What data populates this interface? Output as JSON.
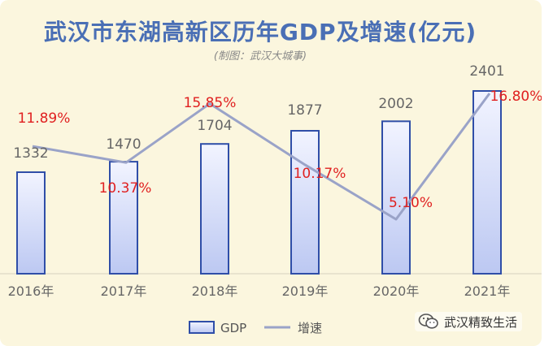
{
  "chart_data": {
    "type": "bar+line",
    "title": "武汉市东湖高新区历年GDP及增速(亿元)",
    "subtitle": "(制图：武汉大城事)",
    "categories": [
      "2016年",
      "2017年",
      "2018年",
      "2019年",
      "2020年",
      "2021年"
    ],
    "series": [
      {
        "name": "GDP",
        "type": "bar",
        "values": [
          1332,
          1470,
          1704,
          1877,
          2002,
          2401
        ],
        "labels": [
          "1332",
          "1470",
          "1704",
          "1877",
          "2002",
          "2401"
        ]
      },
      {
        "name": "增速",
        "type": "line",
        "values": [
          11.89,
          10.37,
          15.85,
          10.17,
          5.1,
          16.8
        ],
        "labels": [
          "11.89%",
          "10.37%",
          "15.85%",
          "10.17%",
          "5.10%",
          "16.80%"
        ]
      }
    ],
    "ylim_gdp": [
      0,
      2600
    ],
    "ylim_growth": [
      0,
      20
    ],
    "legend": [
      "GDP",
      "增速"
    ],
    "legend_position": "bottom"
  },
  "colors": {
    "bar_top": "#f2f4ff",
    "bar_bottom": "#bcc8f2",
    "bar_border": "#2f4ea8",
    "line": "#9aa3c8",
    "title": "#4a6fb5",
    "percent_label": "#e02020",
    "value_label": "#666666"
  },
  "watermark": {
    "text": "武汉精致生活",
    "icon": "wechat-icon"
  }
}
